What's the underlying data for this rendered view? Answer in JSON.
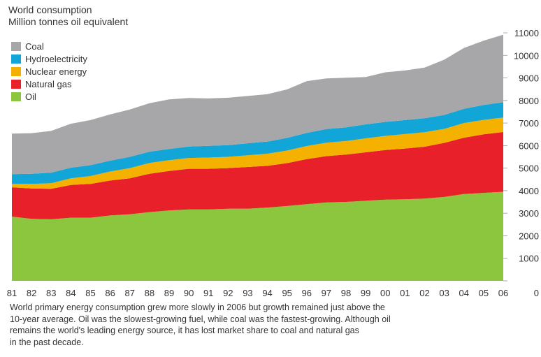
{
  "chart_data": {
    "type": "area",
    "stacked": true,
    "title": "World consumption",
    "subtitle": "Million tonnes oil equivalent",
    "x": [
      "81",
      "82",
      "83",
      "84",
      "85",
      "86",
      "87",
      "88",
      "89",
      "90",
      "91",
      "92",
      "93",
      "94",
      "95",
      "96",
      "97",
      "98",
      "99",
      "00",
      "01",
      "02",
      "03",
      "04",
      "05",
      "06"
    ],
    "ylim": [
      0,
      11000
    ],
    "yticks": [
      0,
      1000,
      2000,
      3000,
      4000,
      5000,
      6000,
      7000,
      8000,
      9000,
      10000,
      11000
    ],
    "axis_position": "right",
    "grid": false,
    "legend_position": "top-left",
    "series": [
      {
        "name": "Oil",
        "color": "#8cc63f",
        "values": [
          2850,
          2750,
          2730,
          2800,
          2800,
          2900,
          2950,
          3050,
          3120,
          3170,
          3170,
          3200,
          3200,
          3250,
          3320,
          3400,
          3480,
          3500,
          3550,
          3600,
          3620,
          3650,
          3720,
          3850,
          3900,
          3950
        ]
      },
      {
        "name": "Natural gas",
        "color": "#e8202a",
        "values": [
          1300,
          1350,
          1350,
          1450,
          1500,
          1550,
          1600,
          1700,
          1750,
          1800,
          1800,
          1800,
          1850,
          1850,
          1900,
          2000,
          2050,
          2100,
          2150,
          2200,
          2250,
          2300,
          2400,
          2500,
          2600,
          2650
        ]
      },
      {
        "name": "Nuclear energy",
        "color": "#f5b100",
        "values": [
          150,
          200,
          250,
          300,
          350,
          400,
          450,
          480,
          480,
          480,
          500,
          500,
          520,
          540,
          560,
          580,
          600,
          600,
          620,
          630,
          640,
          640,
          620,
          650,
          640,
          640
        ]
      },
      {
        "name": "Hydroelectricity",
        "color": "#12a5d8",
        "values": [
          430,
          450,
          470,
          470,
          480,
          480,
          500,
          500,
          500,
          510,
          520,
          520,
          530,
          540,
          560,
          580,
          600,
          610,
          620,
          620,
          620,
          620,
          620,
          630,
          660,
          680
        ]
      },
      {
        "name": "Coal",
        "color": "#a7a7a9",
        "values": [
          1800,
          1800,
          1850,
          1950,
          2000,
          2050,
          2100,
          2150,
          2200,
          2150,
          2100,
          2100,
          2100,
          2100,
          2150,
          2300,
          2250,
          2200,
          2100,
          2200,
          2200,
          2250,
          2450,
          2700,
          2850,
          3000
        ]
      }
    ],
    "legend_order": [
      "Coal",
      "Hydroelectricity",
      "Nuclear energy",
      "Natural gas",
      "Oil"
    ]
  },
  "caption": [
    "World primary energy consumption grew more slowly in 2006 but growth remained just above the",
    "10-year average. Oil was the slowest-growing fuel, while coal was the fastest-growing. Although oil",
    "remains the world's leading energy source, it has lost market share to coal and natural gas",
    "in the past decade."
  ]
}
